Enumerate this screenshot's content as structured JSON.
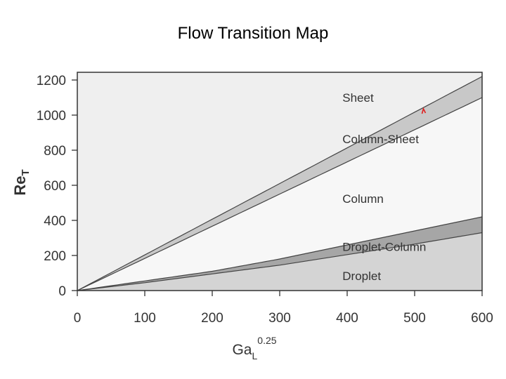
{
  "slide": {
    "title": "Flow Transition Map"
  },
  "chart_data": {
    "type": "area",
    "xlabel": {
      "base": "Ga",
      "subscript": "L",
      "superscript": "0.25"
    },
    "ylabel": {
      "base": "Re",
      "subscript": "T"
    },
    "xlim": [
      0,
      600
    ],
    "ylim": [
      0,
      1250
    ],
    "x_ticks": [
      0,
      100,
      200,
      300,
      400,
      500,
      600
    ],
    "y_ticks": [
      0,
      200,
      400,
      600,
      800,
      1000,
      1200
    ],
    "grid": false,
    "boundaries": [
      {
        "name": "column-sheet-upper",
        "x": [
          0,
          600
        ],
        "y": [
          0,
          1220
        ]
      },
      {
        "name": "column-sheet-lower",
        "x": [
          0,
          600
        ],
        "y": [
          0,
          1100
        ]
      },
      {
        "name": "droplet-column-upper",
        "x": [
          0,
          100,
          200,
          300,
          400,
          500,
          600
        ],
        "y": [
          0,
          55,
          110,
          180,
          260,
          340,
          420
        ]
      },
      {
        "name": "droplet-column-lower",
        "x": [
          0,
          100,
          200,
          300,
          400,
          500,
          600
        ],
        "y": [
          0,
          45,
          95,
          145,
          205,
          265,
          330
        ]
      }
    ],
    "regions": [
      {
        "label": "Sheet",
        "color": "#efefef",
        "label_at": [
          393,
          1100
        ]
      },
      {
        "label": "Column-Sheet",
        "color": "#c8c8c8",
        "label_at": [
          393,
          865
        ]
      },
      {
        "label": "Column",
        "color": "#f7f7f7",
        "label_at": [
          393,
          525
        ]
      },
      {
        "label": "Droplet-Column",
        "color": "#a6a6a6",
        "label_at": [
          393,
          250
        ]
      },
      {
        "label": "Droplet",
        "color": "#d4d4d4",
        "label_at": [
          393,
          85
        ]
      }
    ],
    "annotation": {
      "label": "marker",
      "color": "#e02020",
      "x": 513,
      "y": 1020
    }
  }
}
